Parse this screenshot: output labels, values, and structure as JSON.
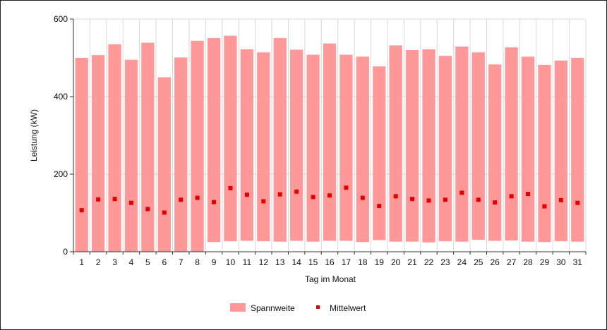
{
  "chart_data": {
    "type": "bar",
    "title": "",
    "xlabel": "Tag im Monat",
    "ylabel": "Leistung (kW)",
    "ylim": [
      0,
      600
    ],
    "yticks": [
      0,
      200,
      400,
      600
    ],
    "grid": "vertical lines between categories, horizontal lines at y ticks",
    "legend_position": "bottom-center",
    "colors": {
      "range": "#ff9999",
      "mean": "#e00000"
    },
    "categories": [
      "1",
      "2",
      "3",
      "4",
      "5",
      "6",
      "7",
      "8",
      "9",
      "10",
      "11",
      "12",
      "13",
      "14",
      "15",
      "16",
      "17",
      "18",
      "19",
      "20",
      "21",
      "22",
      "23",
      "24",
      "25",
      "26",
      "27",
      "28",
      "29",
      "30",
      "31"
    ],
    "series": [
      {
        "name": "Spannweite",
        "kind": "range-bar",
        "low": [
          0,
          0,
          0,
          0,
          0,
          0,
          0,
          0,
          25,
          27,
          28,
          27,
          26,
          28,
          26,
          28,
          28,
          25,
          30,
          26,
          26,
          24,
          27,
          26,
          31,
          28,
          29,
          26,
          25,
          27,
          26
        ],
        "high": [
          500,
          507,
          535,
          495,
          539,
          450,
          501,
          544,
          551,
          557,
          522,
          514,
          551,
          521,
          508,
          537,
          508,
          503,
          478,
          532,
          520,
          522,
          505,
          529,
          514,
          483,
          527,
          503,
          482,
          493,
          500
        ]
      },
      {
        "name": "Mittelwert",
        "kind": "marker",
        "values": [
          107,
          135,
          136,
          126,
          110,
          101,
          134,
          139,
          128,
          164,
          147,
          130,
          148,
          155,
          141,
          145,
          165,
          139,
          118,
          143,
          136,
          132,
          134,
          152,
          134,
          127,
          143,
          149,
          117,
          133,
          126
        ]
      }
    ]
  }
}
